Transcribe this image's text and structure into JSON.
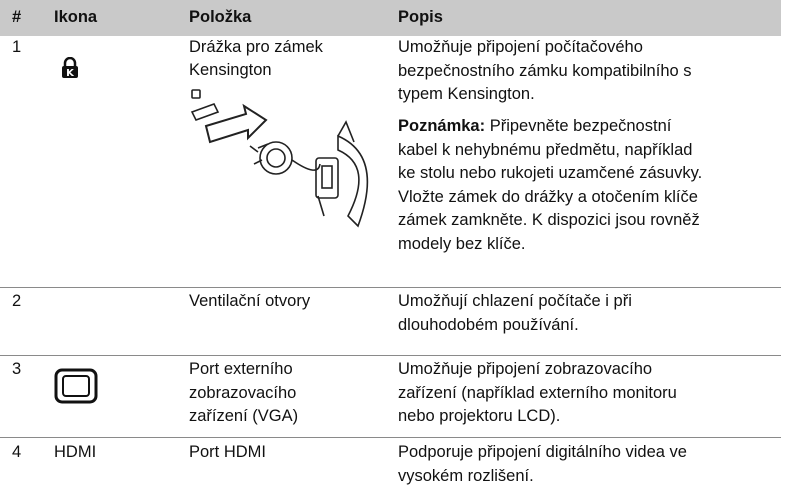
{
  "table": {
    "header": [
      "#",
      "Ikona",
      "Položka",
      "Popis"
    ],
    "rows": [
      {
        "number": "1",
        "item": [
          "Drážka pro zámek",
          "Kensington"
        ],
        "description": [
          "Umožňuje připojení počítačového",
          "bezpečnostního zámku kompatibilního s",
          "typem Kensington."
        ],
        "note": {
          "label": "Poznámka:",
          "lines": [
            "Připevněte bezpečnostní",
            "kabel k nehybnému předmětu, například",
            "ke stolu nebo rukojeti uzamčené zásuvky.",
            "Vložte zámek do drážky a otočením klíče",
            "zámek zamkněte. K dispozici jsou rovněž",
            "modely bez klíče."
          ]
        }
      },
      {
        "number": "2",
        "item": [
          "Ventilační otvory"
        ],
        "description": [
          "Umožňují chlazení počítače i při",
          "dlouhodobém používání."
        ]
      },
      {
        "number": "3",
        "item": [
          "Port externího",
          "zobrazovacího",
          "zařízení (VGA)"
        ],
        "description": [
          "Umožňuje připojení zobrazovacího",
          "zařízení (například externího monitoru",
          "nebo projektoru LCD)."
        ]
      },
      {
        "number": "4",
        "icon": "HDMI",
        "item": [
          "Port HDMI"
        ],
        "description": [
          "Podporuje připojení digitálního videa ve",
          "vysokém rozlišení."
        ]
      }
    ]
  }
}
